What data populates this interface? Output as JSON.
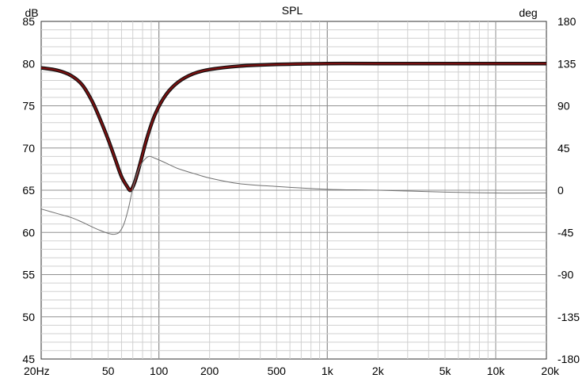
{
  "chart_data": {
    "type": "line",
    "title": "SPL",
    "x_scale": "log",
    "xlim": [
      20,
      20000
    ],
    "ylim_left": [
      45,
      85
    ],
    "ylim_right": [
      -180,
      180
    ],
    "ylabel_left": "dB",
    "ylabel_right": "deg",
    "grid": true,
    "x_ticks": [
      {
        "value": 20,
        "label": "20Hz"
      },
      {
        "value": 50,
        "label": "50"
      },
      {
        "value": 100,
        "label": "100"
      },
      {
        "value": 200,
        "label": "200"
      },
      {
        "value": 500,
        "label": "500"
      },
      {
        "value": 1000,
        "label": "1k"
      },
      {
        "value": 2000,
        "label": "2k"
      },
      {
        "value": 5000,
        "label": "5k"
      },
      {
        "value": 10000,
        "label": "10k"
      },
      {
        "value": 20000,
        "label": "20k"
      }
    ],
    "y_ticks_left": [
      85,
      80,
      75,
      70,
      65,
      60,
      55,
      50,
      45
    ],
    "y_ticks_right": [
      180,
      135,
      90,
      45,
      0,
      -45,
      -90,
      -135,
      -180
    ],
    "series": [
      {
        "axis": "left",
        "color": "#7a1010",
        "points": [
          [
            20,
            79.5
          ],
          [
            25,
            79.2
          ],
          [
            30,
            78.6
          ],
          [
            35,
            77.5
          ],
          [
            40,
            75.6
          ],
          [
            45,
            73.3
          ],
          [
            50,
            71.0
          ],
          [
            55,
            68.7
          ],
          [
            60,
            66.6
          ],
          [
            65,
            65.4
          ],
          [
            68,
            65.0
          ],
          [
            72,
            66.0
          ],
          [
            77,
            68.0
          ],
          [
            85,
            71.2
          ],
          [
            95,
            74.0
          ],
          [
            110,
            76.3
          ],
          [
            130,
            77.8
          ],
          [
            160,
            78.8
          ],
          [
            200,
            79.3
          ],
          [
            300,
            79.7
          ],
          [
            500,
            79.9
          ],
          [
            1000,
            80.0
          ],
          [
            2000,
            80.0
          ],
          [
            5000,
            80.0
          ],
          [
            10000,
            80.0
          ],
          [
            20000,
            80.0
          ]
        ]
      },
      {
        "axis": "right",
        "color": "#707070",
        "points": [
          [
            20,
            -20
          ],
          [
            25,
            -25
          ],
          [
            30,
            -29
          ],
          [
            35,
            -34
          ],
          [
            40,
            -39
          ],
          [
            45,
            -43
          ],
          [
            50,
            -46
          ],
          [
            54,
            -47
          ],
          [
            58,
            -45
          ],
          [
            62,
            -36
          ],
          [
            66,
            -19
          ],
          [
            70,
            2
          ],
          [
            75,
            20
          ],
          [
            80,
            30
          ],
          [
            87,
            36
          ],
          [
            95,
            34
          ],
          [
            110,
            29
          ],
          [
            130,
            23
          ],
          [
            160,
            18
          ],
          [
            200,
            13
          ],
          [
            300,
            7
          ],
          [
            500,
            4
          ],
          [
            1000,
            1
          ],
          [
            2000,
            0
          ],
          [
            5000,
            -2
          ],
          [
            10000,
            -3
          ],
          [
            20000,
            -3
          ]
        ]
      }
    ]
  }
}
